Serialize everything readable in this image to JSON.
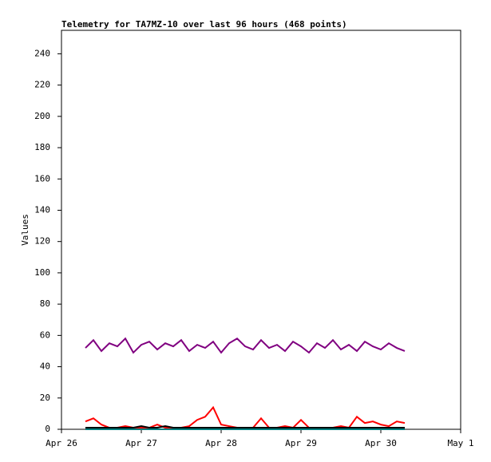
{
  "chart_data": {
    "type": "line",
    "title": "Telemetry for TA7MZ-10 over last 96 hours (468 points)",
    "y_label": "Values",
    "x": [
      26.3,
      26.4,
      26.5,
      26.6,
      26.7,
      26.8,
      26.9,
      27.0,
      27.1,
      27.2,
      27.3,
      27.4,
      27.5,
      27.6,
      27.7,
      27.8,
      27.9,
      28.0,
      28.1,
      28.2,
      28.3,
      28.4,
      28.5,
      28.6,
      28.7,
      28.8,
      28.9,
      29.0,
      29.1,
      29.2,
      29.3,
      29.4,
      29.5,
      29.6,
      29.7,
      29.8,
      29.9,
      30.0,
      30.1,
      30.2,
      30.3
    ],
    "series": [
      {
        "color": "#800080",
        "values": [
          52,
          57,
          50,
          55,
          53,
          58,
          49,
          54,
          56,
          51,
          55,
          53,
          57,
          50,
          54,
          52,
          56,
          49,
          55,
          58,
          53,
          51,
          57,
          52,
          54,
          50,
          56,
          53,
          49,
          55,
          52,
          57,
          51,
          54,
          50,
          56,
          53,
          51,
          55,
          52,
          50
        ]
      },
      {
        "color": "#ff0000",
        "values": [
          5,
          7,
          3,
          1,
          1,
          2,
          1,
          1,
          1,
          3,
          1,
          1,
          1,
          2,
          6,
          8,
          14,
          3,
          2,
          1,
          1,
          1,
          7,
          1,
          1,
          2,
          1,
          6,
          1,
          1,
          1,
          1,
          2,
          1,
          8,
          4,
          5,
          3,
          2,
          5,
          4
        ]
      },
      {
        "color": "#000000",
        "values": [
          1,
          1,
          1,
          1,
          1,
          1,
          1,
          2,
          1,
          1,
          2,
          1,
          1,
          1,
          1,
          1,
          1,
          1,
          1,
          1,
          1,
          1,
          1,
          1,
          1,
          1,
          1,
          1,
          1,
          1,
          1,
          1,
          1,
          1,
          1,
          1,
          1,
          1,
          1,
          1,
          1
        ]
      },
      {
        "color": "#008080",
        "values": [
          0,
          0,
          0,
          0,
          0,
          0,
          0,
          0,
          0,
          0,
          0,
          0,
          0,
          0,
          0,
          0,
          0,
          0,
          0,
          0,
          0,
          0,
          0,
          0,
          0,
          0,
          0,
          0,
          0,
          0,
          0,
          0,
          0,
          0,
          0,
          0,
          0,
          0,
          0,
          0,
          0
        ]
      }
    ],
    "xlim": [
      26,
      31
    ],
    "xticks": [
      {
        "value": 26,
        "label": "Apr 26"
      },
      {
        "value": 27,
        "label": "Apr 27"
      },
      {
        "value": 28,
        "label": "Apr 28"
      },
      {
        "value": 29,
        "label": "Apr 29"
      },
      {
        "value": 30,
        "label": "Apr 30"
      },
      {
        "value": 31,
        "label": "May 1"
      }
    ],
    "ylim": [
      0,
      255
    ],
    "yticks": [
      0,
      20,
      40,
      60,
      80,
      100,
      120,
      140,
      160,
      180,
      200,
      220,
      240
    ]
  }
}
